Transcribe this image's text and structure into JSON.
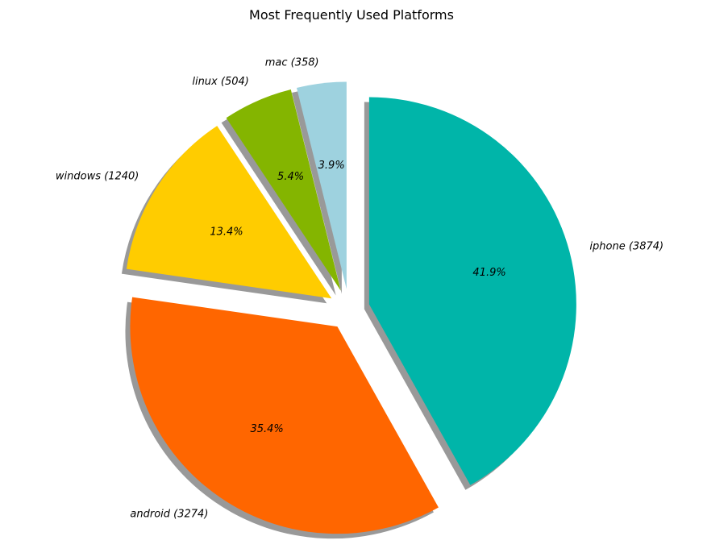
{
  "chart_data": {
    "type": "pie",
    "title": "Most Frequently Used Platforms",
    "start_angle_deg": 90,
    "direction": "clockwise",
    "shadow": true,
    "slices": [
      {
        "name": "iphone",
        "value": 3874,
        "label": "iphone (3874)",
        "pct_label": "41.9%",
        "color": "#00b5a9",
        "explode": 0.1
      },
      {
        "name": "android",
        "value": 3274,
        "label": "android (3274)",
        "pct_label": "35.4%",
        "color": "#ff6600",
        "explode": 0.1
      },
      {
        "name": "windows",
        "value": 1240,
        "label": "windows (1240)",
        "pct_label": "13.4%",
        "color": "#ffcc00",
        "explode": 0.1
      },
      {
        "name": "linux",
        "value": 504,
        "label": "linux (504)",
        "pct_label": "5.4%",
        "color": "#84b500",
        "explode": 0.1
      },
      {
        "name": "mac",
        "value": 358,
        "label": "mac (358)",
        "pct_label": "3.9%",
        "color": "#9ed2df",
        "explode": 0.1
      }
    ]
  }
}
